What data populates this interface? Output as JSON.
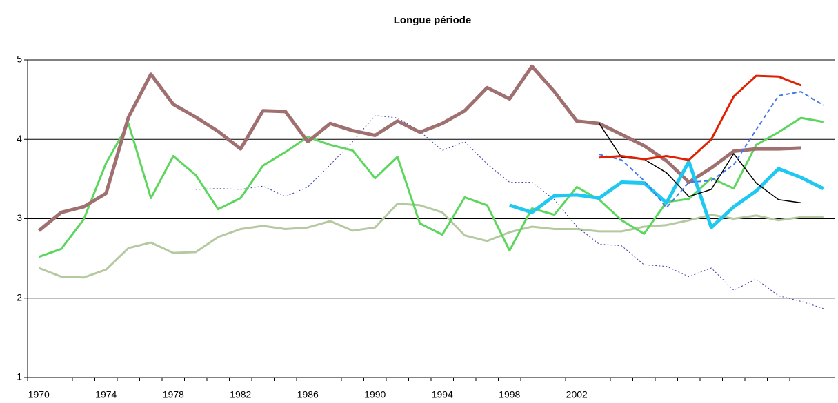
{
  "chart_data": {
    "type": "line",
    "title": "Longue période",
    "categories": [
      "1970",
      null,
      null,
      "1974",
      null,
      null,
      "1978",
      null,
      null,
      "1982",
      null,
      null,
      "1986",
      null,
      null,
      "1990",
      null,
      null,
      "1994",
      null,
      null,
      "1998",
      null,
      null,
      "2002",
      null,
      null,
      null,
      null,
      null,
      null,
      null,
      null,
      null,
      null,
      null
    ],
    "ylim": [
      1,
      5
    ],
    "yticks": [
      1,
      2,
      3,
      4,
      5
    ],
    "grid": true,
    "series": [
      {
        "color": "#b5c9a0",
        "width": 3,
        "values": [
          2.38,
          2.27,
          2.26,
          2.36,
          2.63,
          2.7,
          2.57,
          2.58,
          2.77,
          2.87,
          2.91,
          2.87,
          2.89,
          2.97,
          2.85,
          2.89,
          3.19,
          3.17,
          3.08,
          2.79,
          2.72,
          2.83,
          2.9,
          2.87,
          2.87,
          2.84,
          2.84,
          2.9,
          2.92,
          2.98,
          3.05,
          3.0,
          3.04,
          2.98,
          3.02,
          3.02
        ]
      },
      {
        "color": "#3a3aa8",
        "width": 1,
        "dash": "2,3",
        "values": [
          null,
          null,
          null,
          null,
          null,
          null,
          null,
          3.37,
          3.38,
          3.37,
          3.41,
          3.28,
          3.4,
          3.68,
          3.97,
          4.3,
          4.27,
          4.1,
          3.86,
          3.97,
          3.69,
          3.46,
          3.46,
          3.24,
          2.9,
          2.68,
          2.66,
          2.42,
          2.4,
          2.27,
          2.38,
          2.1,
          2.24,
          2.03,
          1.96,
          1.87
        ]
      },
      {
        "color": "#5cd65c",
        "width": 3,
        "values": [
          2.52,
          2.62,
          2.99,
          3.7,
          4.2,
          3.26,
          3.79,
          3.55,
          3.12,
          3.26,
          3.67,
          3.84,
          4.03,
          3.93,
          3.86,
          3.51,
          3.78,
          2.94,
          2.8,
          3.27,
          3.17,
          2.6,
          3.13,
          3.05,
          3.4,
          3.24,
          2.98,
          2.81,
          3.21,
          3.25,
          3.51,
          3.38,
          3.93,
          4.09,
          4.27,
          4.22
        ]
      },
      {
        "color": "#a07070",
        "width": 5,
        "values": [
          2.85,
          3.08,
          3.15,
          3.32,
          4.28,
          4.82,
          4.44,
          4.28,
          4.1,
          3.88,
          4.36,
          4.35,
          3.97,
          4.2,
          4.11,
          4.05,
          4.23,
          4.09,
          4.2,
          4.36,
          4.65,
          4.51,
          4.92,
          4.6,
          4.23,
          4.2,
          4.06,
          3.92,
          3.73,
          3.46,
          3.64,
          3.85,
          3.88,
          3.88,
          3.89,
          null
        ]
      },
      {
        "color": "#1fc8f0",
        "width": 5,
        "values": [
          null,
          null,
          null,
          null,
          null,
          null,
          null,
          null,
          null,
          null,
          null,
          null,
          null,
          null,
          null,
          null,
          null,
          null,
          null,
          null,
          null,
          3.17,
          3.08,
          3.29,
          3.3,
          3.26,
          3.46,
          3.45,
          3.2,
          3.72,
          2.89,
          3.15,
          3.35,
          3.63,
          3.52,
          3.38
        ]
      },
      {
        "color": "#000000",
        "width": 1.5,
        "values": [
          null,
          null,
          null,
          null,
          null,
          null,
          null,
          null,
          null,
          null,
          null,
          null,
          null,
          null,
          null,
          null,
          null,
          null,
          null,
          null,
          null,
          null,
          null,
          null,
          null,
          4.2,
          3.77,
          3.75,
          3.58,
          3.28,
          3.37,
          3.82,
          3.45,
          3.24,
          3.2,
          null
        ]
      },
      {
        "color": "#4477ee",
        "width": 2,
        "dash": "6,4",
        "values": [
          null,
          null,
          null,
          null,
          null,
          null,
          null,
          null,
          null,
          null,
          null,
          null,
          null,
          null,
          null,
          null,
          null,
          null,
          null,
          null,
          null,
          null,
          null,
          null,
          null,
          3.81,
          3.74,
          3.48,
          3.14,
          3.46,
          3.48,
          3.68,
          4.12,
          4.55,
          4.6,
          4.43
        ]
      },
      {
        "color": "#e02000",
        "width": 3,
        "values": [
          null,
          null,
          null,
          null,
          null,
          null,
          null,
          null,
          null,
          null,
          null,
          null,
          null,
          null,
          null,
          null,
          null,
          null,
          null,
          null,
          null,
          null,
          null,
          null,
          null,
          3.77,
          3.79,
          3.75,
          3.79,
          3.74,
          4.0,
          4.54,
          4.8,
          4.79,
          4.68,
          null
        ]
      }
    ]
  }
}
